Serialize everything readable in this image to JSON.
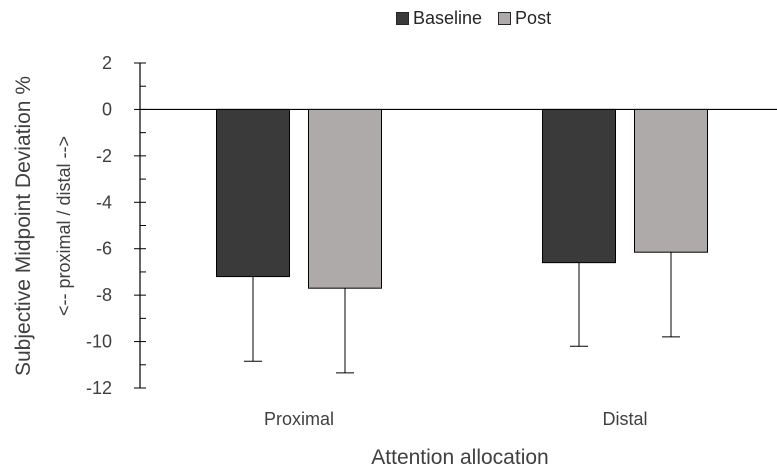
{
  "chart_data": {
    "type": "bar",
    "xlabel": "Attention allocation",
    "ylabel": "Subjective Midpoint Deviation %",
    "ylabel_sub": "<-- proximal / distal -->",
    "categories": [
      "Proximal",
      "Distal"
    ],
    "series": [
      {
        "name": "Baseline",
        "color": "#3a3a3a",
        "values": [
          -7.2,
          -6.6
        ],
        "error_low": [
          -10.85,
          -10.2
        ]
      },
      {
        "name": "Post",
        "color": "#aeaaaa",
        "values": [
          -7.7,
          -6.15
        ],
        "error_low": [
          -11.35,
          -9.8
        ]
      }
    ],
    "ylim": [
      -12,
      2
    ],
    "yticks": [
      2,
      0,
      -2,
      -4,
      -6,
      -8,
      -10,
      -12
    ],
    "minor_step": 1,
    "legend_position": "top",
    "grid": false
  }
}
